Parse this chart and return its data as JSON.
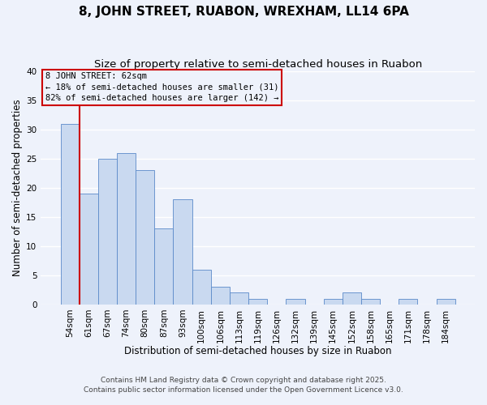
{
  "title": "8, JOHN STREET, RUABON, WREXHAM, LL14 6PA",
  "subtitle": "Size of property relative to semi-detached houses in Ruabon",
  "xlabel": "Distribution of semi-detached houses by size in Ruabon",
  "ylabel": "Number of semi-detached properties",
  "bar_labels": [
    "54sqm",
    "61sqm",
    "67sqm",
    "74sqm",
    "80sqm",
    "87sqm",
    "93sqm",
    "100sqm",
    "106sqm",
    "113sqm",
    "119sqm",
    "126sqm",
    "132sqm",
    "139sqm",
    "145sqm",
    "152sqm",
    "158sqm",
    "165sqm",
    "171sqm",
    "178sqm",
    "184sqm"
  ],
  "bar_values": [
    31,
    19,
    25,
    26,
    23,
    13,
    18,
    6,
    3,
    2,
    1,
    0,
    1,
    0,
    1,
    2,
    1,
    0,
    1,
    0,
    1
  ],
  "bar_color": "#c9d9f0",
  "bar_edge_color": "#5b8ac9",
  "highlight_index": 1,
  "highlight_line_color": "#cc0000",
  "annotation_line1": "8 JOHN STREET: 62sqm",
  "annotation_line2": "← 18% of semi-detached houses are smaller (31)",
  "annotation_line3": "82% of semi-detached houses are larger (142) →",
  "annotation_box_edge": "#cc0000",
  "ylim": [
    0,
    40
  ],
  "yticks": [
    0,
    5,
    10,
    15,
    20,
    25,
    30,
    35,
    40
  ],
  "footnote1": "Contains HM Land Registry data © Crown copyright and database right 2025.",
  "footnote2": "Contains public sector information licensed under the Open Government Licence v3.0.",
  "background_color": "#eef2fb",
  "grid_color": "#ffffff",
  "title_fontsize": 11,
  "subtitle_fontsize": 9.5,
  "axis_label_fontsize": 8.5,
  "tick_fontsize": 7.5,
  "annotation_fontsize": 7.5,
  "footnote_fontsize": 6.5
}
